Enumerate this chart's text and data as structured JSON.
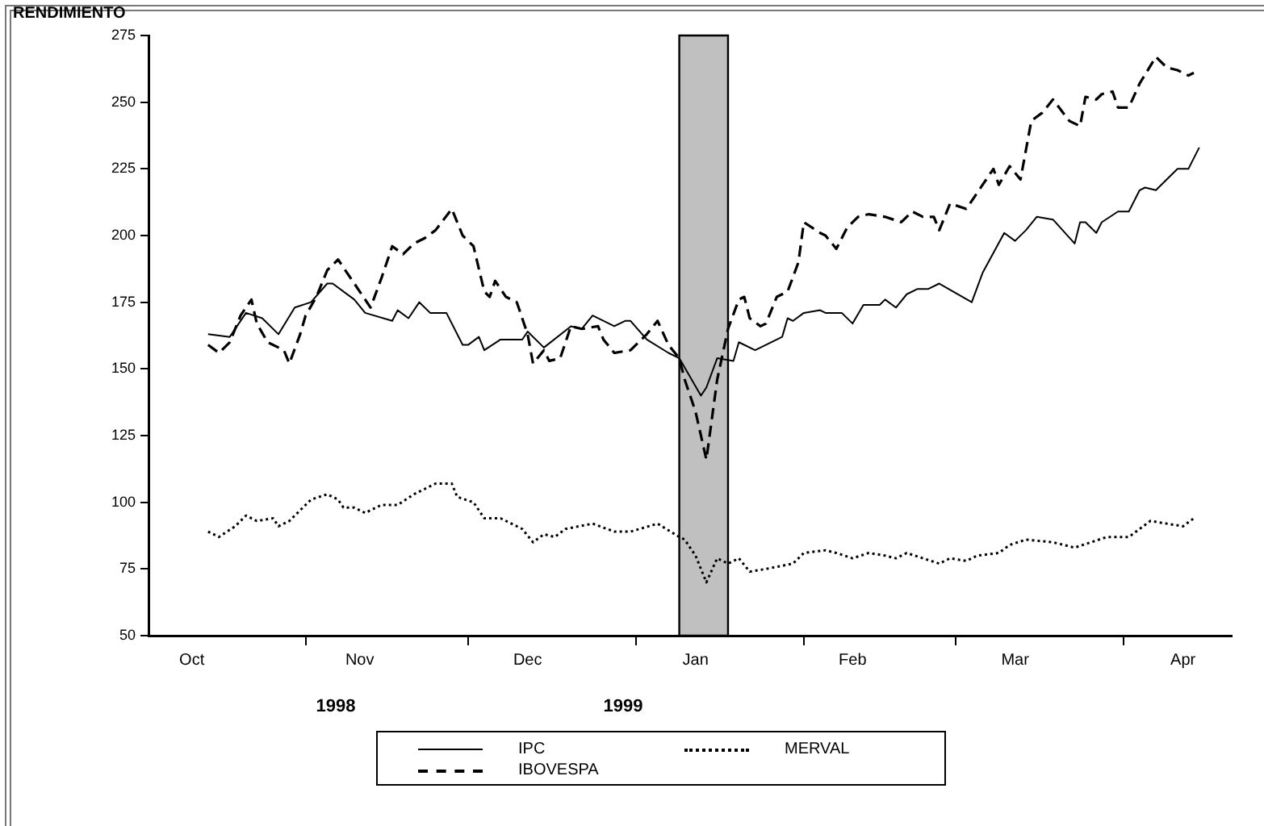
{
  "chart_data": {
    "type": "line",
    "ylabel": "RENDIMIENTO",
    "xlim": [
      "1998-10-03",
      "1999-04-21"
    ],
    "xticks": [
      {
        "value": "1998-10-11",
        "label": "Oct"
      },
      {
        "value": "1998-11-01",
        "label": null
      },
      {
        "value": "1998-11-11",
        "label": "Nov"
      },
      {
        "value": "1998-12-01",
        "label": null
      },
      {
        "value": "1998-12-12",
        "label": "Dec"
      },
      {
        "value": "1999-01-01",
        "label": null
      },
      {
        "value": "1999-01-12",
        "label": "Jan"
      },
      {
        "value": "1999-02-01",
        "label": null
      },
      {
        "value": "1999-02-10",
        "label": "Feb"
      },
      {
        "value": "1999-03-01",
        "label": null
      },
      {
        "value": "1999-03-12",
        "label": "Mar"
      },
      {
        "value": "1999-04-01",
        "label": null
      },
      {
        "value": "1999-04-12",
        "label": "Apr"
      }
    ],
    "ylim": [
      50,
      275
    ],
    "yticks": [
      50,
      75,
      100,
      125,
      150,
      175,
      200,
      225,
      250,
      275
    ],
    "grid": false,
    "legend": "bottom",
    "marker": "none",
    "bands": [
      {
        "axis": "x",
        "from": "1999-01-09",
        "to": "1999-01-18",
        "color": "#c0c0c0"
      }
    ],
    "annotations": [
      "1998",
      "1999"
    ],
    "series": [
      {
        "name": "IPC",
        "color": "#000000",
        "line_style": "solid",
        "x": [
          "1998-10-14",
          "1998-10-18",
          "1998-10-21",
          "1998-10-24",
          "1998-10-27",
          "1998-10-30",
          "1998-11-02",
          "1998-11-05",
          "1998-11-06",
          "1998-11-10",
          "1998-11-12",
          "1998-11-17",
          "1998-11-18",
          "1998-11-20",
          "1998-11-22",
          "1998-11-24",
          "1998-11-27",
          "1998-11-30",
          "1998-12-01",
          "1998-12-03",
          "1998-12-04",
          "1998-12-07",
          "1998-12-11",
          "1998-12-12",
          "1998-12-15",
          "1998-12-20",
          "1998-12-22",
          "1998-12-24",
          "1998-12-28",
          "1998-12-30",
          "1998-12-31",
          "1999-01-03",
          "1999-01-07",
          "1999-01-09",
          "1999-01-13",
          "1999-01-14",
          "1999-01-16",
          "1999-01-19",
          "1999-01-20",
          "1999-01-23",
          "1999-01-28",
          "1999-01-29",
          "1999-01-30",
          "1999-02-01",
          "1999-02-04",
          "1999-02-05",
          "1999-02-08",
          "1999-02-10",
          "1999-02-12",
          "1999-02-15",
          "1999-02-16",
          "1999-02-18",
          "1999-02-20",
          "1999-02-22",
          "1999-02-24",
          "1999-02-26",
          "1999-03-04",
          "1999-03-06",
          "1999-03-10",
          "1999-03-12",
          "1999-03-14",
          "1999-03-16",
          "1999-03-19",
          "1999-03-23",
          "1999-03-24",
          "1999-03-25",
          "1999-03-27",
          "1999-03-28",
          "1999-03-31",
          "1999-04-02",
          "1999-04-04",
          "1999-04-05",
          "1999-04-07",
          "1999-04-09",
          "1999-04-11",
          "1999-04-13",
          "1999-04-15"
        ],
        "values": [
          163,
          162,
          171,
          169,
          163,
          173,
          175,
          182,
          182,
          176,
          171,
          168,
          172,
          169,
          175,
          171,
          171,
          159,
          159,
          162,
          157,
          161,
          161,
          164,
          158,
          166,
          165,
          170,
          166,
          168,
          168,
          161,
          156,
          154,
          140,
          143,
          154,
          153,
          160,
          157,
          162,
          169,
          168,
          171,
          172,
          171,
          171,
          167,
          174,
          174,
          176,
          173,
          178,
          180,
          180,
          182,
          175,
          186,
          201,
          198,
          202,
          207,
          206,
          197,
          205,
          205,
          201,
          205,
          209,
          209,
          217,
          218,
          217,
          221,
          225,
          225,
          233
        ]
      },
      {
        "name": "IBOVESPA",
        "color": "#000000",
        "line_style": "dashed",
        "x": [
          "1998-10-14",
          "1998-10-16",
          "1998-10-18",
          "1998-10-20",
          "1998-10-22",
          "1998-10-23",
          "1998-10-25",
          "1998-10-28",
          "1998-10-29",
          "1998-10-31",
          "1998-11-01",
          "1998-11-03",
          "1998-11-05",
          "1998-11-07",
          "1998-11-09",
          "1998-11-13",
          "1998-11-15",
          "1998-11-17",
          "1998-11-19",
          "1998-11-21",
          "1998-11-23",
          "1998-11-25",
          "1998-11-28",
          "1998-11-30",
          "1998-12-02",
          "1998-12-04",
          "1998-12-05",
          "1998-12-06",
          "1998-12-08",
          "1998-12-10",
          "1998-12-12",
          "1998-12-13",
          "1998-12-15",
          "1998-12-16",
          "1998-12-18",
          "1998-12-20",
          "1998-12-22",
          "1998-12-25",
          "1998-12-26",
          "1998-12-28",
          "1998-12-31",
          "1999-01-03",
          "1999-01-05",
          "1999-01-07",
          "1999-01-09",
          "1999-01-10",
          "1999-01-12",
          "1999-01-14",
          "1999-01-16",
          "1999-01-18",
          "1999-01-20",
          "1999-01-21",
          "1999-01-22",
          "1999-01-24",
          "1999-01-25",
          "1999-01-27",
          "1999-01-29",
          "1999-01-31",
          "1999-02-01",
          "1999-02-04",
          "1999-02-05",
          "1999-02-07",
          "1999-02-09",
          "1999-02-11",
          "1999-02-13",
          "1999-02-16",
          "1999-02-19",
          "1999-02-21",
          "1999-02-23",
          "1999-02-25",
          "1999-02-26",
          "1999-02-28",
          "1999-03-03",
          "1999-03-06",
          "1999-03-08",
          "1999-03-09",
          "1999-03-11",
          "1999-03-13",
          "1999-03-15",
          "1999-03-17",
          "1999-03-19",
          "1999-03-22",
          "1999-03-24",
          "1999-03-25",
          "1999-03-27",
          "1999-03-28",
          "1999-03-30",
          "1999-03-31",
          "1999-04-02",
          "1999-04-04",
          "1999-04-07",
          "1999-04-09",
          "1999-04-11",
          "1999-04-13",
          "1999-04-14"
        ],
        "values": [
          159,
          156,
          160,
          170,
          176,
          167,
          160,
          157,
          152,
          163,
          170,
          177,
          187,
          191,
          185,
          173,
          184,
          196,
          193,
          197,
          199,
          202,
          210,
          200,
          196,
          179,
          177,
          183,
          177,
          175,
          163,
          152,
          157,
          153,
          154,
          166,
          165,
          166,
          161,
          156,
          157,
          163,
          168,
          159,
          154,
          146,
          134,
          116,
          146,
          165,
          176,
          177,
          169,
          166,
          167,
          177,
          179,
          190,
          205,
          201,
          200,
          195,
          203,
          207,
          208,
          207,
          205,
          209,
          207,
          207,
          202,
          212,
          210,
          219,
          225,
          219,
          226,
          221,
          243,
          246,
          251,
          243,
          241,
          252,
          251,
          253,
          254,
          248,
          248,
          257,
          267,
          263,
          262,
          260,
          261
        ]
      },
      {
        "name": "MERVAL",
        "color": "#000000",
        "line_style": "dotted",
        "x": [
          "1998-10-14",
          "1998-10-16",
          "1998-10-19",
          "1998-10-21",
          "1998-10-23",
          "1998-10-26",
          "1998-10-27",
          "1998-10-29",
          "1998-11-02",
          "1998-11-05",
          "1998-11-07",
          "1998-11-08",
          "1998-11-10",
          "1998-11-12",
          "1998-11-15",
          "1998-11-18",
          "1998-11-21",
          "1998-11-25",
          "1998-11-28",
          "1998-11-29",
          "1998-12-02",
          "1998-12-04",
          "1998-12-07",
          "1998-12-11",
          "1998-12-13",
          "1998-12-15",
          "1998-12-17",
          "1998-12-19",
          "1998-12-24",
          "1998-12-28",
          "1998-12-31",
          "1999-01-05",
          "1999-01-09",
          "1999-01-10",
          "1999-01-12",
          "1999-01-14",
          "1999-01-16",
          "1999-01-18",
          "1999-01-20",
          "1999-01-22",
          "1999-01-25",
          "1999-01-30",
          "1999-02-01",
          "1999-02-05",
          "1999-02-07",
          "1999-02-10",
          "1999-02-13",
          "1999-02-16",
          "1999-02-18",
          "1999-02-20",
          "1999-02-26",
          "1999-02-28",
          "1999-03-03",
          "1999-03-05",
          "1999-03-09",
          "1999-03-11",
          "1999-03-14",
          "1999-03-19",
          "1999-03-23",
          "1999-03-26",
          "1999-03-29",
          "1999-04-02",
          "1999-04-04",
          "1999-04-06",
          "1999-04-09",
          "1999-04-12",
          "1999-04-14"
        ],
        "values": [
          89,
          87,
          91,
          95,
          93,
          94,
          91,
          93,
          101,
          103,
          101,
          98,
          98,
          96,
          99,
          99,
          103,
          107,
          107,
          102,
          100,
          94,
          94,
          90,
          85,
          88,
          87,
          90,
          92,
          89,
          89,
          92,
          87,
          86,
          80,
          70,
          79,
          77,
          79,
          74,
          75,
          77,
          81,
          82,
          81,
          79,
          81,
          80,
          79,
          81,
          77,
          79,
          78,
          80,
          81,
          84,
          86,
          85,
          83,
          85,
          87,
          87,
          90,
          93,
          92,
          91,
          94
        ]
      }
    ]
  }
}
